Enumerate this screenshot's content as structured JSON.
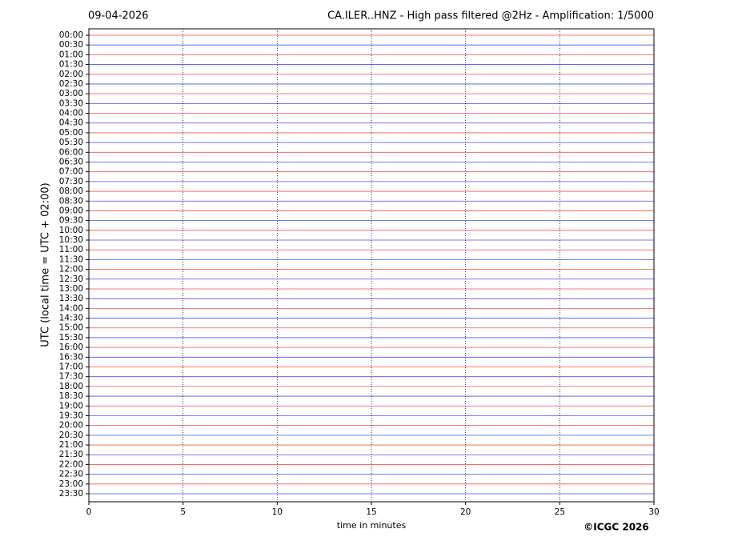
{
  "chart_data": {
    "type": "helicorder",
    "date": "09-04-2026",
    "title": "CA.ILER..HNZ - High pass filtered @2Hz - Amplification: 1/5000",
    "y_label": "UTC (local time = UTC + 02:00)",
    "x_label": "time in minutes",
    "copyright": "©ICGC 2026",
    "categories": [
      "00:00",
      "00:30",
      "01:00",
      "01:30",
      "02:00",
      "02:30",
      "03:00",
      "03:30",
      "04:00",
      "04:30",
      "05:00",
      "05:30",
      "06:00",
      "06:30",
      "07:00",
      "07:30",
      "08:00",
      "08:30",
      "09:00",
      "09:30",
      "10:00",
      "10:30",
      "11:00",
      "11:30",
      "12:00",
      "12:30",
      "13:00",
      "13:30",
      "14:00",
      "14:30",
      "15:00",
      "15:30",
      "16:00",
      "16:30",
      "17:00",
      "17:30",
      "18:00",
      "18:30",
      "19:00",
      "19:30",
      "20:00",
      "20:30",
      "21:00",
      "21:30",
      "22:00",
      "22:30",
      "23:00",
      "23:30"
    ],
    "trace_colors": [
      "#ff0000",
      "#0000ff"
    ],
    "xlim": [
      0,
      30
    ],
    "xticks": [
      0,
      5,
      10,
      15,
      20,
      25,
      30
    ],
    "grid": true
  }
}
